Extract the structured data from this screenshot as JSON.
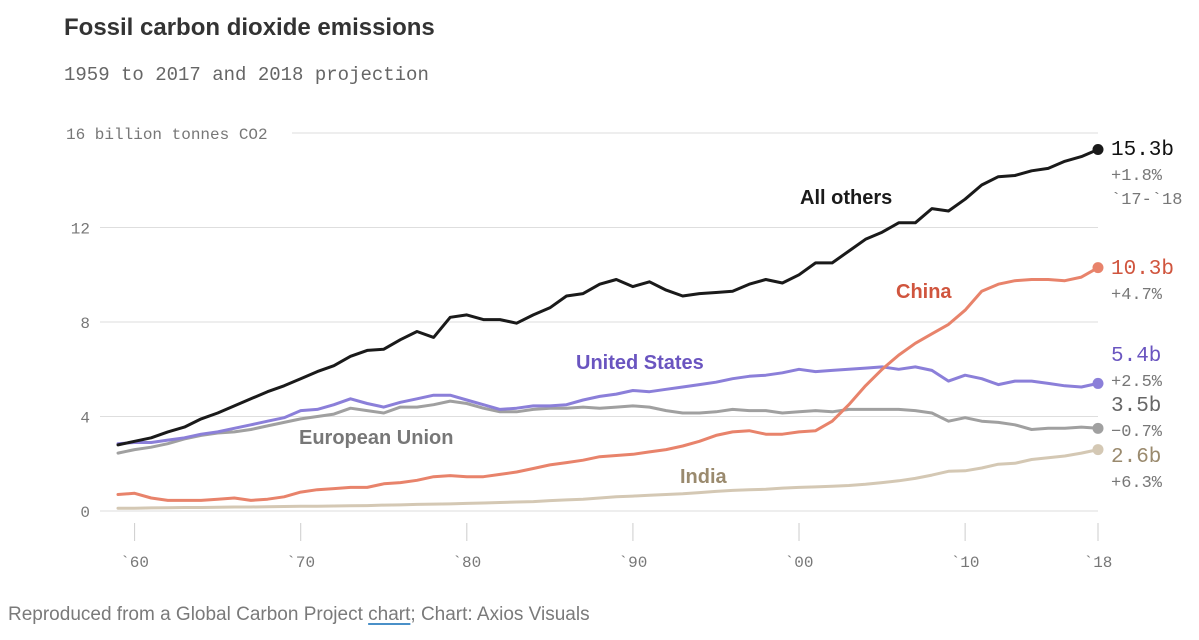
{
  "title": "Fossil carbon dioxide emissions",
  "subtitle": "1959 to 2017 and 2018 projection",
  "footer": {
    "prefix": "Reproduced from a Global Carbon Project ",
    "link": "chart",
    "suffix": "; Chart: Axios Visuals"
  },
  "chart_data": {
    "type": "line",
    "title": "Fossil carbon dioxide emissions",
    "subtitle": "1959 to 2017 and 2018 projection",
    "ylabel": "16 billion tonnes CO2",
    "xlim": [
      1959,
      2018
    ],
    "ylim": [
      0,
      16
    ],
    "y_ticks": [
      {
        "value": 0,
        "label": "0"
      },
      {
        "value": 4,
        "label": "4"
      },
      {
        "value": 8,
        "label": "8"
      },
      {
        "value": 12,
        "label": "12"
      },
      {
        "value": 16,
        "label": "16 billion tonnes CO2"
      }
    ],
    "x_ticks": [
      {
        "value": 1960,
        "label": "`60"
      },
      {
        "value": 1970,
        "label": "`70"
      },
      {
        "value": 1980,
        "label": "`80"
      },
      {
        "value": 1990,
        "label": "`90"
      },
      {
        "value": 2000,
        "label": "`00"
      },
      {
        "value": 2010,
        "label": "`10"
      },
      {
        "value": 2018,
        "label": "`18"
      }
    ],
    "grid": "horizontal",
    "x": [
      1959,
      1960,
      1961,
      1962,
      1963,
      1964,
      1965,
      1966,
      1967,
      1968,
      1969,
      1970,
      1971,
      1972,
      1973,
      1974,
      1975,
      1976,
      1977,
      1978,
      1979,
      1980,
      1981,
      1982,
      1983,
      1984,
      1985,
      1986,
      1987,
      1988,
      1989,
      1990,
      1991,
      1992,
      1993,
      1994,
      1995,
      1996,
      1997,
      1998,
      1999,
      2000,
      2001,
      2002,
      2003,
      2004,
      2005,
      2006,
      2007,
      2008,
      2009,
      2010,
      2011,
      2012,
      2013,
      2014,
      2015,
      2016,
      2017,
      2018
    ],
    "series": [
      {
        "name": "All others",
        "color": "#1a1a1a",
        "end_value": "15.3b",
        "end_change": [
          "+1.8%",
          "`17-`18"
        ],
        "values": [
          2.8,
          2.95,
          3.1,
          3.35,
          3.55,
          3.9,
          4.15,
          4.45,
          4.75,
          5.05,
          5.3,
          5.6,
          5.9,
          6.15,
          6.55,
          6.8,
          6.85,
          7.25,
          7.6,
          7.35,
          8.2,
          8.3,
          8.1,
          8.1,
          7.95,
          8.3,
          8.6,
          9.1,
          9.2,
          9.6,
          9.8,
          9.5,
          9.7,
          9.35,
          9.1,
          9.2,
          9.25,
          9.3,
          9.6,
          9.8,
          9.65,
          10.0,
          10.5,
          10.5,
          11.0,
          11.5,
          11.8,
          12.2,
          12.2,
          12.8,
          12.7,
          13.2,
          13.8,
          14.15,
          14.2,
          14.4,
          14.5,
          14.8,
          15.0,
          15.3
        ]
      },
      {
        "name": "China",
        "color": "#e8836b",
        "end_value": "10.3b",
        "end_change": [
          "+4.7%"
        ],
        "values": [
          0.7,
          0.75,
          0.55,
          0.45,
          0.45,
          0.45,
          0.5,
          0.55,
          0.45,
          0.5,
          0.6,
          0.8,
          0.9,
          0.95,
          1.0,
          1.0,
          1.15,
          1.2,
          1.3,
          1.45,
          1.5,
          1.45,
          1.45,
          1.55,
          1.65,
          1.8,
          1.95,
          2.05,
          2.15,
          2.3,
          2.35,
          2.4,
          2.5,
          2.6,
          2.75,
          2.95,
          3.2,
          3.35,
          3.4,
          3.25,
          3.25,
          3.35,
          3.4,
          3.8,
          4.5,
          5.3,
          6.0,
          6.6,
          7.1,
          7.5,
          7.9,
          8.5,
          9.3,
          9.6,
          9.75,
          9.8,
          9.8,
          9.75,
          9.9,
          10.3
        ]
      },
      {
        "name": "United States",
        "color": "#8b7fd9",
        "end_value": "5.4b",
        "end_change": [
          "+2.5%"
        ],
        "values": [
          2.85,
          2.9,
          2.9,
          3.0,
          3.1,
          3.25,
          3.35,
          3.5,
          3.65,
          3.8,
          3.95,
          4.25,
          4.3,
          4.5,
          4.75,
          4.55,
          4.4,
          4.6,
          4.75,
          4.9,
          4.9,
          4.7,
          4.5,
          4.3,
          4.35,
          4.45,
          4.45,
          4.5,
          4.7,
          4.85,
          4.95,
          5.1,
          5.05,
          5.15,
          5.25,
          5.35,
          5.45,
          5.6,
          5.7,
          5.75,
          5.85,
          6.0,
          5.9,
          5.95,
          6.0,
          6.05,
          6.1,
          6.0,
          6.1,
          5.95,
          5.5,
          5.75,
          5.6,
          5.35,
          5.5,
          5.5,
          5.4,
          5.3,
          5.25,
          5.4
        ]
      },
      {
        "name": "European Union",
        "color": "#a0a0a0",
        "end_value": "3.5b",
        "end_change": [
          "−0.7%"
        ],
        "values": [
          2.45,
          2.6,
          2.7,
          2.85,
          3.05,
          3.2,
          3.3,
          3.35,
          3.45,
          3.6,
          3.75,
          3.9,
          4.0,
          4.1,
          4.35,
          4.25,
          4.15,
          4.4,
          4.4,
          4.5,
          4.65,
          4.55,
          4.35,
          4.2,
          4.2,
          4.3,
          4.35,
          4.35,
          4.4,
          4.35,
          4.4,
          4.45,
          4.4,
          4.25,
          4.15,
          4.15,
          4.2,
          4.3,
          4.25,
          4.25,
          4.15,
          4.2,
          4.25,
          4.2,
          4.3,
          4.3,
          4.3,
          4.3,
          4.25,
          4.15,
          3.8,
          3.95,
          3.8,
          3.75,
          3.65,
          3.45,
          3.5,
          3.5,
          3.55,
          3.5
        ]
      },
      {
        "name": "India",
        "color": "#d4c8b4",
        "end_value": "2.6b",
        "end_change": [
          "+6.3%"
        ],
        "values": [
          0.12,
          0.12,
          0.13,
          0.14,
          0.15,
          0.15,
          0.16,
          0.17,
          0.17,
          0.18,
          0.19,
          0.2,
          0.2,
          0.21,
          0.22,
          0.23,
          0.25,
          0.26,
          0.28,
          0.29,
          0.3,
          0.32,
          0.34,
          0.36,
          0.38,
          0.4,
          0.44,
          0.47,
          0.5,
          0.55,
          0.6,
          0.63,
          0.67,
          0.7,
          0.73,
          0.78,
          0.83,
          0.87,
          0.9,
          0.92,
          0.97,
          1.0,
          1.02,
          1.05,
          1.08,
          1.13,
          1.2,
          1.28,
          1.38,
          1.52,
          1.68,
          1.7,
          1.82,
          1.98,
          2.02,
          2.18,
          2.25,
          2.33,
          2.45,
          2.6
        ]
      }
    ]
  }
}
